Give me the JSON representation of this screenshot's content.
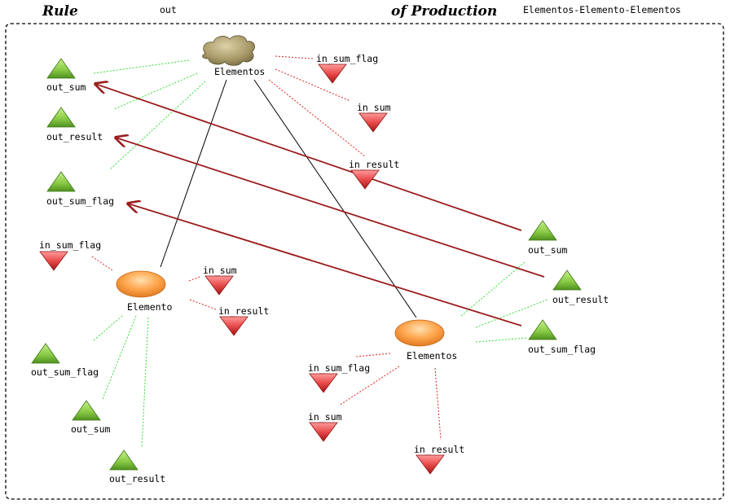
{
  "header": {
    "rule_label": "Rule",
    "out_label": "out",
    "production_label": "of Production",
    "rule_name": "Elementos-Elemento-Elementos"
  },
  "colors": {
    "frame": "#000000",
    "arrow": "#9b1c1c",
    "structure_line": "#000000",
    "out_port_link": "#33dd33",
    "in_port_link": "#dd2222",
    "out_port_fill": "#8fd14f",
    "in_port_fill": "#e84a4a",
    "ellipse_fill": "#ffa64d",
    "cloud_fill": "#a89968"
  },
  "nodes": {
    "top_cloud": {
      "label": "Elementos",
      "shape": "cloud"
    },
    "left_ellipse": {
      "label": "Elemento",
      "shape": "ellipse"
    },
    "right_ellipse": {
      "label": "Elementos",
      "shape": "ellipse"
    }
  },
  "ports": {
    "cloud_out_sum": "out_sum",
    "cloud_out_result": "out_result",
    "cloud_out_sum_flag": "out_sum_flag",
    "cloud_in_sum_flag": "in_sum_flag",
    "cloud_in_sum": "in_sum",
    "cloud_in_result": "in_result",
    "left_in_sum_flag": "in_sum_flag",
    "left_in_sum": "in_sum",
    "left_in_result": "in_result",
    "left_out_sum_flag": "out_sum_flag",
    "left_out_sum": "out_sum",
    "left_out_result": "out_result",
    "right_in_sum_flag": "in_sum_flag",
    "right_in_sum": "in_sum",
    "right_in_result": "in_result",
    "right_out_sum": "out_sum",
    "right_out_result": "out_result",
    "right_out_sum_flag": "out_sum_flag"
  }
}
